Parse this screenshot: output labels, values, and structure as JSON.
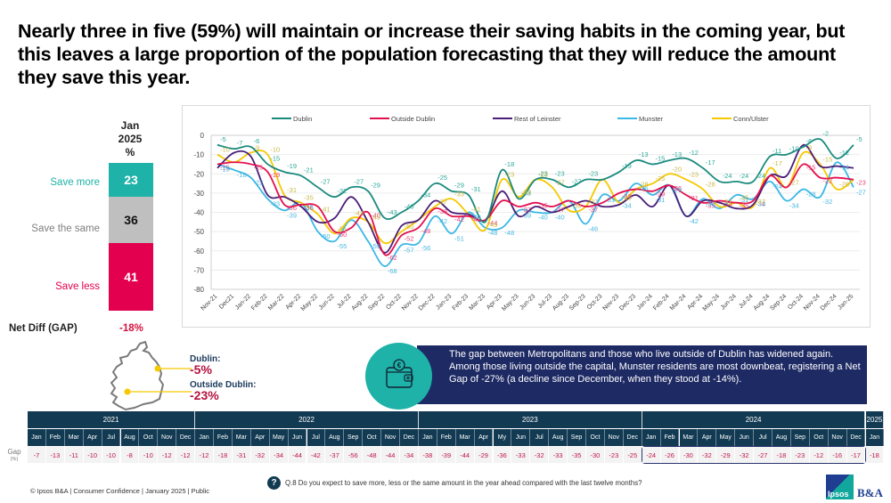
{
  "title": "Nearly three in five (59%) will maintain or increase their saving habits in the coming year, but this leaves a large proportion of the population forecasting that they will reduce the amount they save this year.",
  "stack": {
    "header": [
      "Jan",
      "2025",
      "%"
    ],
    "segments": [
      {
        "label": "Save more",
        "value": "23",
        "color": "#1eb2a8",
        "text_color": "#ffffff",
        "label_color": "#1eb2a8"
      },
      {
        "label": "Save the same",
        "value": "36",
        "color": "#bfbfbf",
        "text_color": "#111111",
        "label_color": "#7f7f7f"
      },
      {
        "label": "Save less",
        "value": "41",
        "color": "#e3004f",
        "text_color": "#ffffff",
        "label_color": "#e3004f"
      }
    ],
    "net_label": "Net Diff (GAP)",
    "net_value": "-18%"
  },
  "chart_data": {
    "type": "line",
    "title": "",
    "xlabel": "",
    "ylabel": "",
    "ylim": [
      -80,
      0
    ],
    "yticks": [
      0,
      -10,
      -20,
      -30,
      -40,
      -50,
      -60,
      -70,
      -80
    ],
    "grid": true,
    "legend_position": "top",
    "categories": [
      "Nov-21",
      "Dec21",
      "Jan-22",
      "Feb-22",
      "Mar-22",
      "Apr-22",
      "May-22",
      "Jun-22",
      "Jul-22",
      "Aug-22",
      "Sep-22",
      "Oct-22",
      "Nov-22",
      "Dec-22",
      "Jan-23",
      "Feb-23",
      "Mar-23",
      "Apr-23",
      "May-23",
      "Jun-23",
      "Jul-23",
      "Aug-23",
      "Sep-23",
      "Oct-23",
      "Nov-23",
      "Dec-23",
      "Jan-24",
      "Feb-24",
      "Mar-24",
      "Apr-24",
      "May-24",
      "Jun-24",
      "Jul-24",
      "Aug-24",
      "Sep-24",
      "Oct-24",
      "Nov-24",
      "Dec-24",
      "Jan-25"
    ],
    "series": [
      {
        "name": "Dublin",
        "color": "#1a8a7e",
        "values": [
          -5,
          -7,
          -6,
          -15,
          -19,
          -21,
          -27,
          -32,
          -27,
          -29,
          -43,
          -40,
          -34,
          -25,
          -29,
          -31,
          -45,
          -18,
          -33,
          -23,
          -23,
          -27,
          -23,
          -23,
          -19,
          -13,
          -15,
          -13,
          -12,
          -17,
          -24,
          -24,
          -24,
          -11,
          -10,
          -6,
          -2,
          -12,
          -5
        ]
      },
      {
        "name": "Outside Dublin",
        "color": "#e3104f",
        "values": [
          -15,
          -14,
          -15,
          -19,
          -36,
          -36,
          -37,
          -50,
          -48,
          -40,
          -62,
          -52,
          -48,
          -38,
          -42,
          -42,
          -44,
          -34,
          -37,
          -35,
          -37,
          -34,
          -37,
          -35,
          -30,
          -28,
          -29,
          -26,
          -31,
          -35,
          -34,
          -35,
          -34,
          -21,
          -27,
          -15,
          -22,
          -22,
          -23
        ]
      },
      {
        "name": "Rest of Leinster",
        "color": "#4a1e78",
        "values": [
          -17,
          -9,
          -11,
          -31,
          -32,
          -37,
          -45,
          -43,
          -32,
          -45,
          -61,
          -47,
          -44,
          -34,
          -40,
          -41,
          -44,
          -29,
          -42,
          -37,
          -40,
          -37,
          -34,
          -37,
          -36,
          -31,
          -37,
          -26,
          -42,
          -34,
          -35,
          -38,
          -36,
          -21,
          -21,
          -5,
          -16,
          -16,
          -17
        ]
      },
      {
        "name": "Munster",
        "color": "#3cb8e6",
        "values": [
          -15,
          -18,
          -22,
          -33,
          -39,
          -35,
          -50,
          -55,
          -44,
          -55,
          -68,
          -57,
          -56,
          -42,
          -51,
          -40,
          -48,
          -48,
          -39,
          -40,
          -40,
          -34,
          -46,
          -31,
          -34,
          -25,
          -31,
          -26,
          -42,
          -33,
          -38,
          -31,
          -33,
          -24,
          -34,
          -28,
          -32,
          -14,
          -27
        ]
      },
      {
        "name": "Conn/Ulster",
        "color": "#f5c800",
        "values": [
          -10,
          -14,
          -9,
          -10,
          -31,
          -35,
          -41,
          -51,
          -43,
          -45,
          -56,
          -50,
          -44,
          -37,
          -33,
          -41,
          -49,
          -23,
          -32,
          -23,
          -27,
          -39,
          -37,
          -23,
          -35,
          -28,
          -25,
          -20,
          -23,
          -28,
          -37,
          -35,
          -37,
          -17,
          -27,
          -9,
          -15,
          -28,
          -23
        ]
      }
    ],
    "point_labels": [
      {
        "series": "Dublin",
        "indices": [
          0,
          1,
          2,
          3,
          4,
          5,
          6,
          7,
          8,
          9,
          10,
          11,
          12,
          13,
          14,
          15,
          17,
          18,
          19,
          20,
          21,
          22,
          24,
          25,
          26,
          27,
          28,
          29,
          30,
          31,
          32,
          33,
          34,
          35,
          36,
          37,
          38
        ]
      },
      {
        "series": "Outside Dublin",
        "indices": [
          0,
          2,
          3,
          4,
          5,
          7,
          9,
          10,
          11,
          12,
          13,
          14,
          15,
          16,
          18,
          19,
          20,
          22,
          24,
          26,
          27,
          28,
          29,
          30,
          31,
          32,
          35,
          36,
          38
        ]
      },
      {
        "series": "Munster",
        "indices": [
          0,
          1,
          2,
          3,
          4,
          5,
          6,
          7,
          9,
          10,
          11,
          12,
          13,
          14,
          15,
          16,
          17,
          18,
          19,
          20,
          22,
          23,
          24,
          25,
          26,
          27,
          28,
          29,
          31,
          32,
          33,
          34,
          35,
          36,
          37,
          38
        ]
      },
      {
        "series": "Conn/Ulster",
        "indices": [
          0,
          2,
          3,
          4,
          5,
          6,
          7,
          8,
          9,
          11,
          13,
          14,
          15,
          16,
          17,
          18,
          19,
          20,
          21,
          22,
          24,
          25,
          26,
          27,
          28,
          29,
          30,
          31,
          32,
          33,
          34,
          35,
          36,
          37
        ]
      }
    ]
  },
  "map": {
    "dublin_label": "Dublin:",
    "dublin_value": "-5%",
    "outside_label": "Outside Dublin:",
    "outside_value": "-23%"
  },
  "callout": {
    "icon": "wallet-euro-icon",
    "text": "The gap between Metropolitans and those who live outside of Dublin has widened again. Among those living outside the capital,  Munster residents are most downbeat, registering a Net Gap of -27% (a decline since December, when they stood at -14%)."
  },
  "gap_table": {
    "row_label": "Gap",
    "row_unit": "(%)",
    "years": [
      {
        "year": "2021",
        "months": [
          "Jan",
          "Feb",
          "Mar",
          "Apr",
          "Jul",
          "Aug",
          "Oct",
          "Nov",
          "Dec"
        ],
        "values": [
          "-7",
          "-13",
          "-11",
          "-10",
          "-10",
          "-8",
          "-10",
          "-12",
          "-12"
        ]
      },
      {
        "year": "2022",
        "months": [
          "Jan",
          "Feb",
          "Mar",
          "Apr",
          "May",
          "Jun",
          "Jul",
          "Aug",
          "Sep",
          "Oct",
          "Nov",
          "Dec"
        ],
        "values": [
          "-12",
          "-18",
          "-31",
          "-32",
          "-34",
          "-44",
          "-42",
          "-37",
          "-56",
          "-48",
          "-44",
          "-34"
        ]
      },
      {
        "year": "2023",
        "months": [
          "Jan",
          "Feb",
          "Mar",
          "Apr",
          "My",
          "Jun",
          "Jul",
          "Aug",
          "Sep",
          "Oct",
          "Nov",
          "Dec"
        ],
        "values": [
          "-38",
          "-39",
          "-44",
          "-29",
          "-36",
          "-33",
          "-32",
          "-33",
          "-35",
          "-30",
          "-23",
          "-25"
        ]
      },
      {
        "year": "2024",
        "months": [
          "Jan",
          "Feb",
          "Mar",
          "Apr",
          "May",
          "Jun",
          "Jul",
          "Aug",
          "Sep",
          "Oct",
          "Nov",
          "Dec"
        ],
        "values": [
          "-24",
          "-26",
          "-30",
          "-32",
          "-29",
          "-32",
          "-27",
          "-18",
          "-23",
          "-12",
          "-16",
          "-17"
        ],
        "highlighted": true
      },
      {
        "year": "2025",
        "months": [
          "Jan"
        ],
        "values": [
          "-18"
        ]
      }
    ]
  },
  "footer": {
    "copyright": "© Ipsos B&A | Consumer Confidence | January 2025 |  Public",
    "question_icon": "?",
    "question": "Q.8 Do you expect to save more, less or the same amount in the year ahead compared with the last twelve months?",
    "logo_ipsos": "Ipsos",
    "logo_ba": "B&A"
  }
}
